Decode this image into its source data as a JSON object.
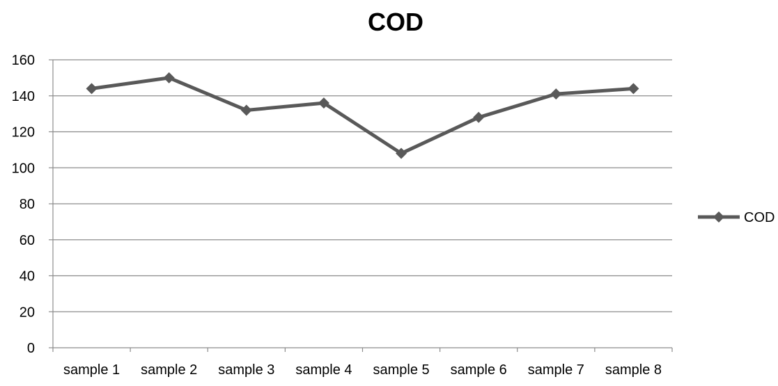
{
  "chart_data": {
    "type": "line",
    "title": "COD",
    "categories": [
      "sample 1",
      "sample 2",
      "sample 3",
      "sample 4",
      "sample 5",
      "sample 6",
      "sample 7",
      "sample 8"
    ],
    "series": [
      {
        "name": "COD",
        "values": [
          144,
          150,
          132,
          136,
          108,
          128,
          141,
          144
        ],
        "color": "#595959",
        "marker": "diamond"
      }
    ],
    "ylim": [
      0,
      160
    ],
    "yticks": [
      0,
      20,
      40,
      60,
      80,
      100,
      120,
      140,
      160
    ],
    "grid": true,
    "legend_position": "right",
    "colors": {
      "gridline": "#8c8c8c",
      "axis": "#8c8c8c",
      "series": "#595959"
    }
  }
}
